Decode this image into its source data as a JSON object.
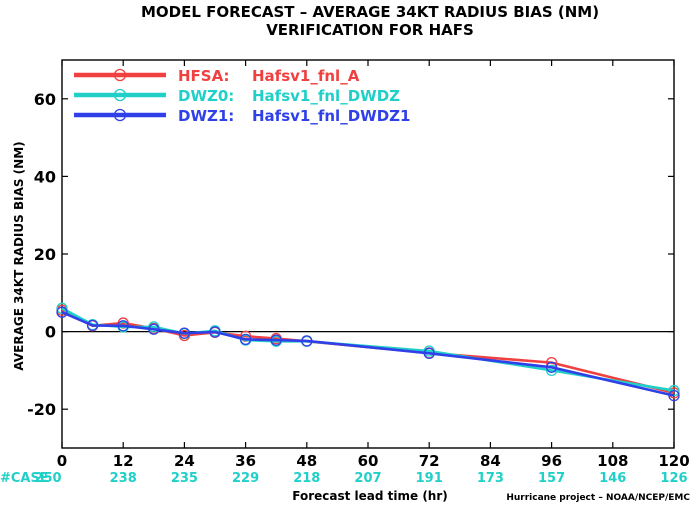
{
  "chart_data": {
    "type": "line",
    "title": "MODEL FORECAST – AVERAGE 34KT RADIUS BIAS (NM)",
    "subtitle": "VERIFICATION FOR HAFS",
    "ylabel": "AVERAGE 34KT RADIUS BIAS (NM)",
    "xlabel": "Forecast lead time (hr)",
    "footer": "Hurricane project – NOAA/NCEP/EMC",
    "xlim": [
      0,
      120
    ],
    "ylim": [
      -30,
      70
    ],
    "xticks": [
      0,
      12,
      24,
      36,
      48,
      60,
      72,
      84,
      96,
      108,
      120
    ],
    "yticks": [
      -20,
      0,
      20,
      40,
      60
    ],
    "zero_line": true,
    "legend_position": "top-left",
    "case_label": "#CASE",
    "cases": {
      "x": [
        0,
        12,
        24,
        36,
        48,
        60,
        72,
        84,
        96,
        108,
        120
      ],
      "values": [
        "250",
        "238",
        "235",
        "229",
        "218",
        "207",
        "191",
        "173",
        "157",
        "146",
        "126"
      ]
    },
    "x": [
      0,
      6,
      12,
      18,
      24,
      30,
      36,
      42,
      48,
      72,
      96,
      120
    ],
    "series": [
      {
        "name": "HFSA:",
        "model": "Hafsv1_fnl_A",
        "color": "#f04040",
        "values": [
          5.5,
          1.5,
          2.2,
          0.8,
          -1.0,
          -0.2,
          -1.2,
          -1.8,
          -2.5,
          -5.5,
          -8.0,
          -15.8
        ]
      },
      {
        "name": "DWZ0:",
        "model": "Hafsv1_fnl_DWDZ",
        "color": "#20d0c8",
        "values": [
          6.0,
          1.8,
          1.2,
          1.2,
          -0.5,
          0.2,
          -2.2,
          -2.5,
          -2.5,
          -5.0,
          -10.0,
          -15.2
        ]
      },
      {
        "name": "DWZ1:",
        "model": "Hafsv1_fnl_DWDZ1",
        "color": "#3040e8",
        "values": [
          5.0,
          1.6,
          1.5,
          0.6,
          -0.4,
          -0.1,
          -2.0,
          -2.2,
          -2.4,
          -5.6,
          -9.2,
          -16.5
        ]
      }
    ]
  }
}
